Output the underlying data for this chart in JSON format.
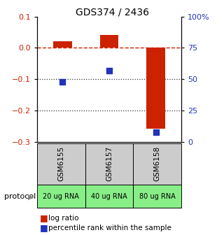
{
  "title": "GDS374 / 2436",
  "samples": [
    "GSM6155",
    "GSM6157",
    "GSM6158"
  ],
  "protocols": [
    "20 ug RNA",
    "40 ug RNA",
    "80 ug RNA"
  ],
  "log_ratios": [
    0.021,
    0.04,
    -0.258
  ],
  "percentiles": [
    0.48,
    0.57,
    0.08
  ],
  "ylim_left": [
    -0.3,
    0.1
  ],
  "ylim_right": [
    0.0,
    1.0
  ],
  "yticks_left": [
    -0.3,
    -0.2,
    -0.1,
    0.0,
    0.1
  ],
  "yticks_right": [
    0.0,
    0.25,
    0.5,
    0.75,
    1.0
  ],
  "ytick_labels_right": [
    "0",
    "25",
    "50",
    "75",
    "100%"
  ],
  "bar_color": "#cc2200",
  "dot_color": "#2233bb",
  "protocol_bg": "#88ee88",
  "gsm_bg": "#cccccc",
  "hline_zero_color": "#cc2200",
  "hline_dotted_color": "#333333",
  "bar_width": 0.4,
  "dot_size": 40,
  "fig_bg": "#ffffff"
}
